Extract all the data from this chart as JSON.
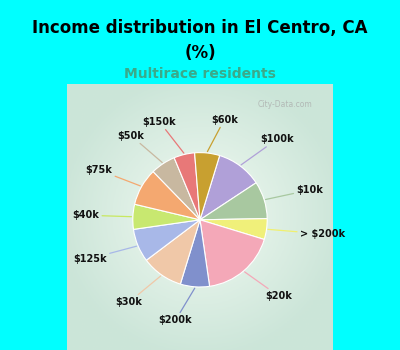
{
  "title_line1": "Income distribution in El Centro, CA",
  "title_line2": "(%)",
  "subtitle": "Multirace residents",
  "title_color": "#000000",
  "subtitle_color": "#3aaa8a",
  "top_bg_color": "#00ffff",
  "chart_bg_color": "#d8f0e8",
  "watermark": "City-Data.com",
  "labels": [
    "$100k",
    "$10k",
    "> $200k",
    "$20k",
    "$200k",
    "$30k",
    "$125k",
    "$40k",
    "$75k",
    "$50k",
    "$150k",
    "$60k"
  ],
  "values": [
    11,
    9,
    5,
    18,
    7,
    10,
    8,
    6,
    9,
    6,
    5,
    6
  ],
  "colors": [
    "#b0a0d8",
    "#a8c8a0",
    "#f0f07a",
    "#f4a8b8",
    "#8090cc",
    "#f0c8a8",
    "#a8b8e8",
    "#c8e870",
    "#f4a870",
    "#c8b8a0",
    "#e87878",
    "#c8a030"
  ],
  "label_colors": [
    "#b0a0d8",
    "#a8c8a0",
    "#f0f070",
    "#f4a8b8",
    "#8090cc",
    "#f0c8a8",
    "#a8b8e8",
    "#c8e860",
    "#f4a870",
    "#c8b8a0",
    "#e87878",
    "#c8a030"
  ],
  "startangle": 73,
  "title_fontsize": 12,
  "subtitle_fontsize": 10,
  "label_fontsize": 7
}
